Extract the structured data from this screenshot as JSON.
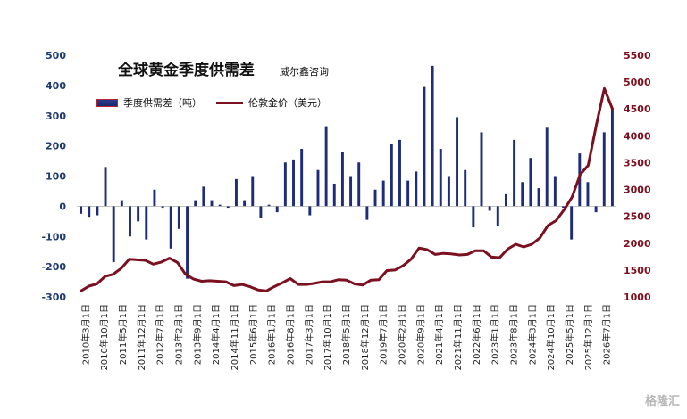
{
  "chart_data": {
    "type": "bar+line",
    "title": "全球黄金季度供需差",
    "subtitle": "威尔鑫咨询",
    "legend": {
      "bar_label": "季度供需差（吨）",
      "line_label": "伦敦金价（美元）"
    },
    "watermark": "格隆汇",
    "colors": {
      "bar": "#1f2d78",
      "line": "#7b1020",
      "left_axis": "#1f3a6e",
      "right_axis": "#7b1020"
    },
    "left_axis": {
      "min": -300,
      "max": 500,
      "ticks": [
        500,
        400,
        300,
        200,
        100,
        0,
        -100,
        -200,
        -300
      ]
    },
    "right_axis": {
      "min": 1000,
      "max": 5500,
      "ticks": [
        5500,
        5000,
        4500,
        4000,
        3500,
        3000,
        2500,
        2000,
        1500,
        1000
      ]
    },
    "x_tick_labels": [
      "2010年3月1日",
      "2010年10月1日",
      "2011年5月1日",
      "2011年12月1日",
      "2012年7月1日",
      "2013年2月1日",
      "2013年9月1日",
      "2014年4月1日",
      "2014年11月1日",
      "2015年6月1日",
      "2016年1月1日",
      "2016年8月1日",
      "2017年3月1日",
      "2017年10月1日",
      "2018年5月1日",
      "2018年12月1日",
      "2019年7月1日",
      "2020年2月1日",
      "2020年9月1日",
      "2021年4月1日",
      "2021年11月1日",
      "2022年6月1日",
      "2023年1月1日",
      "2023年8月1日",
      "2024年3月1日",
      "2024年10月1日",
      "2025年5月1日",
      "2025年12月1日",
      "2026年7月1日"
    ],
    "bar_values": [
      -25,
      -35,
      -30,
      130,
      -185,
      20,
      -100,
      -50,
      -110,
      55,
      -5,
      -140,
      -75,
      -240,
      20,
      65,
      20,
      5,
      -5,
      90,
      20,
      100,
      -40,
      5,
      -20,
      145,
      155,
      190,
      -30,
      120,
      265,
      75,
      180,
      100,
      145,
      -45,
      55,
      85,
      205,
      220,
      85,
      115,
      395,
      465,
      190,
      100,
      295,
      120,
      -70,
      245,
      -15,
      -65,
      40,
      220,
      80,
      160,
      60,
      260,
      100,
      -5,
      -110,
      175,
      80,
      -20,
      245,
      325
    ],
    "gold_price_series": [
      1110,
      1200,
      1240,
      1380,
      1420,
      1530,
      1700,
      1690,
      1680,
      1610,
      1650,
      1720,
      1640,
      1420,
      1330,
      1290,
      1300,
      1290,
      1280,
      1210,
      1230,
      1190,
      1130,
      1110,
      1190,
      1260,
      1340,
      1230,
      1230,
      1250,
      1280,
      1280,
      1320,
      1310,
      1240,
      1220,
      1310,
      1320,
      1490,
      1500,
      1580,
      1700,
      1910,
      1880,
      1790,
      1810,
      1800,
      1780,
      1790,
      1860,
      1860,
      1740,
      1730,
      1890,
      1980,
      1930,
      1980,
      2100,
      2330,
      2420,
      2620,
      2860,
      3280,
      3450,
      4200,
      4880,
      4500
    ]
  }
}
